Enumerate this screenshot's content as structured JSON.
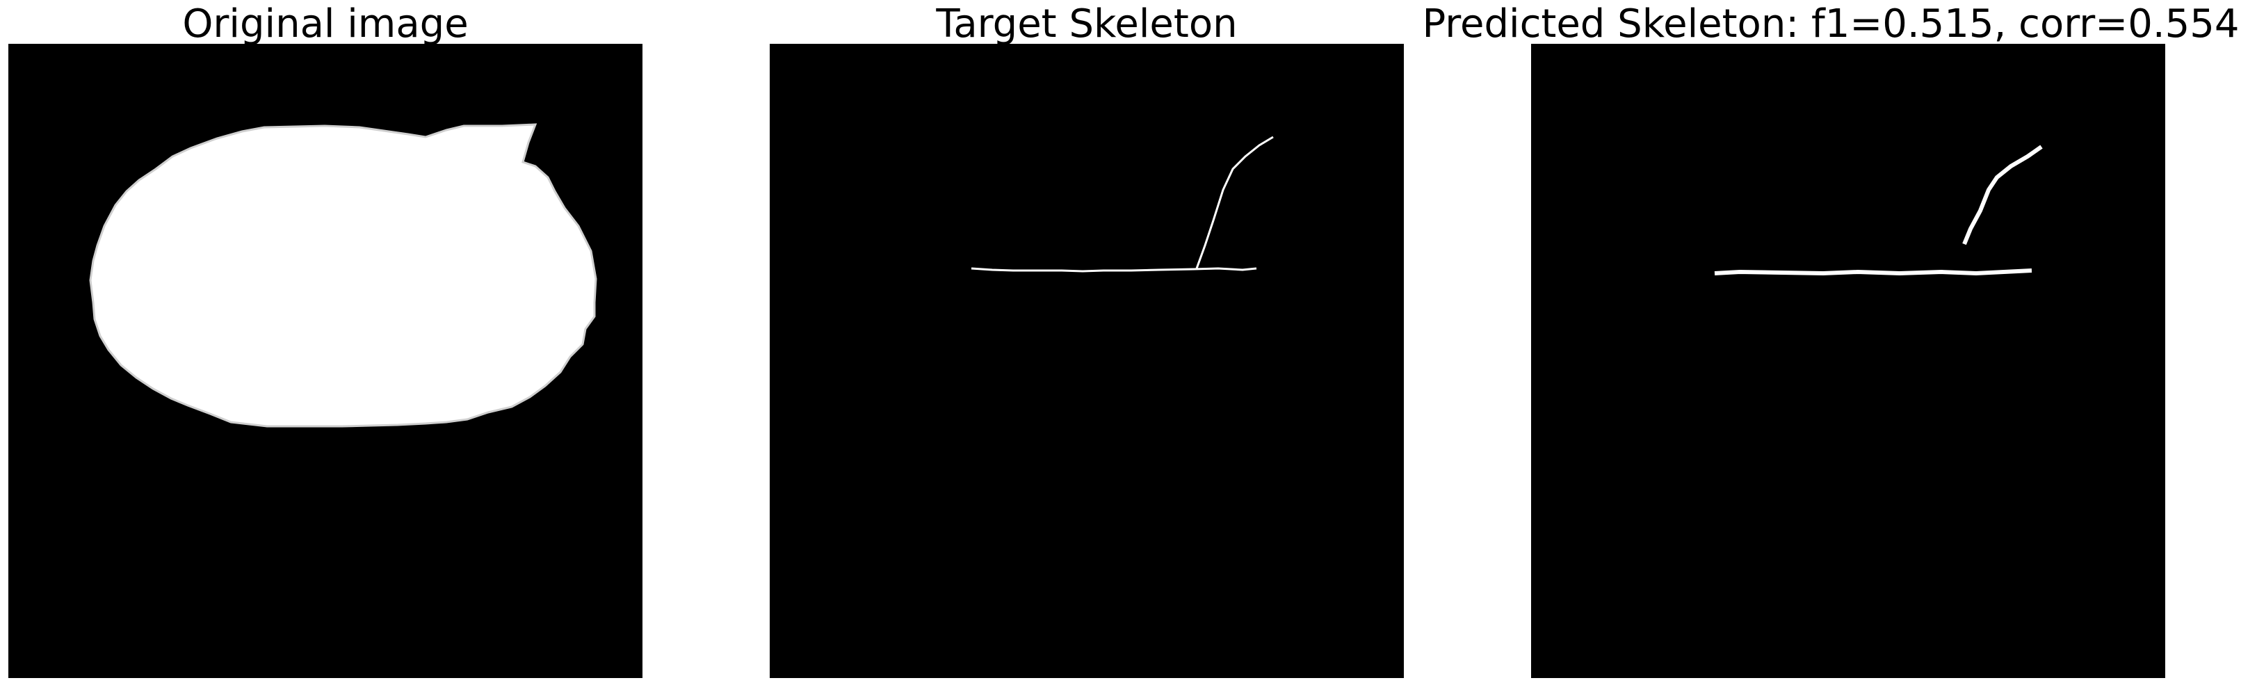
{
  "panels": [
    {
      "title": "Original image"
    },
    {
      "title": "Target Skeleton"
    },
    {
      "title": "Predicted Skeleton: f1=0.515, corr=0.554"
    }
  ]
}
